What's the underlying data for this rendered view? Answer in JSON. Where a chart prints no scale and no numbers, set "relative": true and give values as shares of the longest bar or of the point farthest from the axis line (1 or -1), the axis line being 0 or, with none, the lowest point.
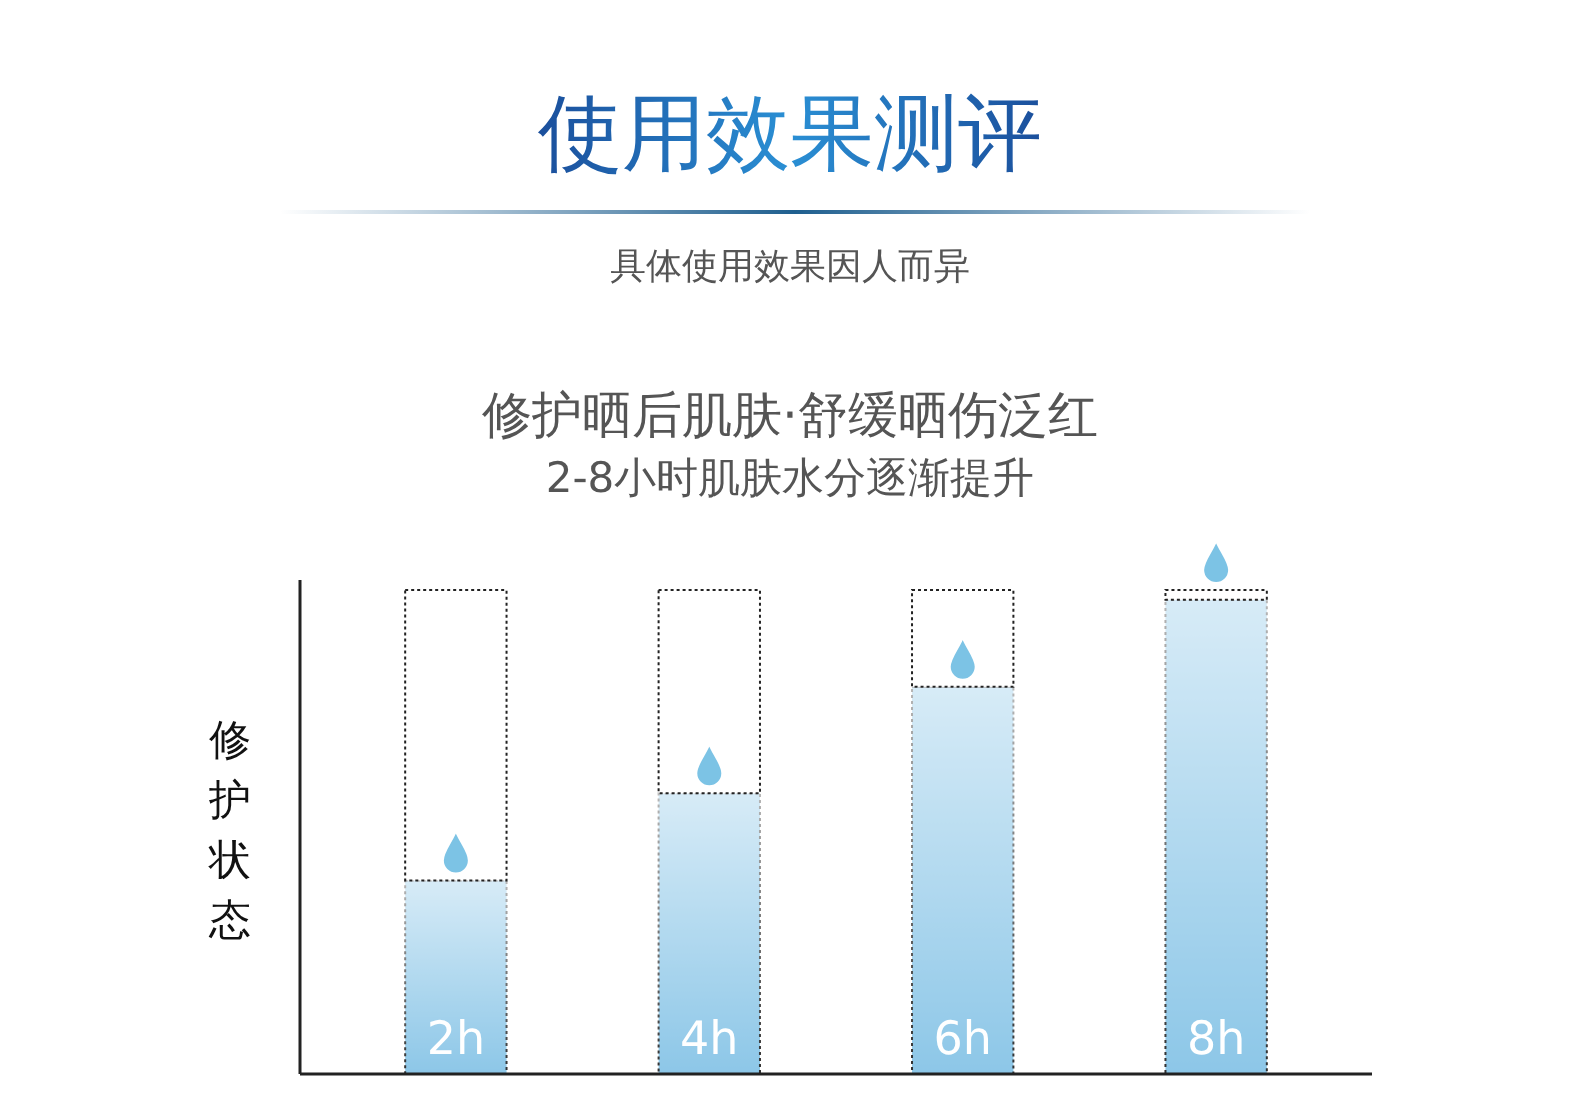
{
  "chart_data": {
    "type": "bar",
    "title": "使用效果测评",
    "subtitle": "具体使用效果因人而异",
    "annotations": [
      "修护晒后肌肤·舒缓晒伤泛红",
      "2-8小时肌肤水分逐渐提升"
    ],
    "ylabel": "修护状态",
    "categories": [
      "2h",
      "4h",
      "6h",
      "8h"
    ],
    "series": [
      {
        "color": "#85c3e6",
        "values": [
          0.4,
          0.58,
          0.8,
          0.98
        ]
      },
      {
        "color": "#ffffff",
        "values": [
          0.6,
          0.42,
          0.2,
          0.02
        ]
      }
    ],
    "stacked": true,
    "relative": true
  }
}
